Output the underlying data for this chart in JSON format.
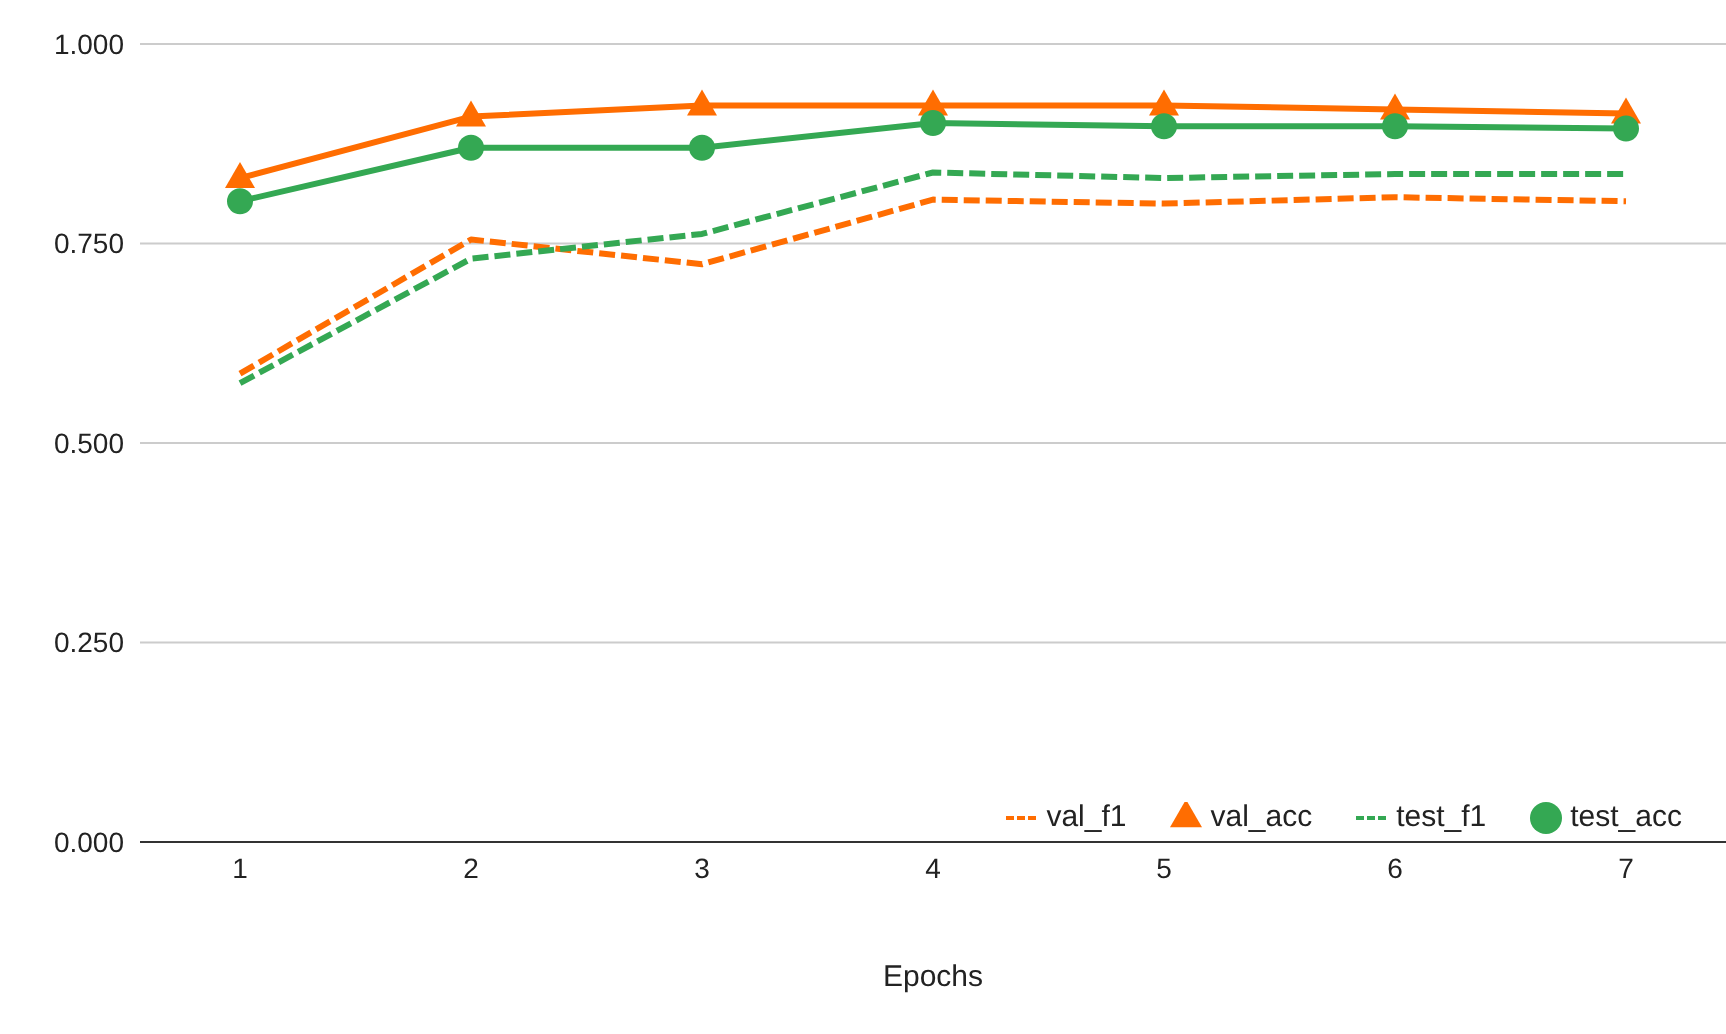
{
  "chart_data": {
    "type": "line",
    "xlabel": "Epochs",
    "categories": [
      "1",
      "2",
      "3",
      "4",
      "5",
      "6",
      "7"
    ],
    "series": [
      {
        "name": "val_f1",
        "color": "#ff6d01",
        "line_style": "dashed",
        "marker": "none",
        "values": [
          0.587,
          0.755,
          0.724,
          0.805,
          0.8,
          0.808,
          0.803
        ]
      },
      {
        "name": "val_acc",
        "color": "#ff6d01",
        "line_style": "solid",
        "marker": "triangle",
        "values": [
          0.832,
          0.909,
          0.923,
          0.923,
          0.923,
          0.918,
          0.913
        ]
      },
      {
        "name": "test_f1",
        "color": "#34a853",
        "line_style": "dashed",
        "marker": "none",
        "values": [
          0.575,
          0.731,
          0.762,
          0.839,
          0.832,
          0.837,
          0.837
        ]
      },
      {
        "name": "test_acc",
        "color": "#34a853",
        "line_style": "solid",
        "marker": "circle",
        "values": [
          0.803,
          0.87,
          0.87,
          0.901,
          0.897,
          0.897,
          0.894
        ]
      }
    ],
    "ylim": [
      0,
      1
    ],
    "yticks": [
      {
        "value": 0,
        "label": "0.000"
      },
      {
        "value": 0.25,
        "label": "0.250"
      },
      {
        "value": 0.5,
        "label": "0.500"
      },
      {
        "value": 0.75,
        "label": "0.750"
      },
      {
        "value": 1,
        "label": "1.000"
      }
    ],
    "grid": "y",
    "legend": "bottom right"
  }
}
